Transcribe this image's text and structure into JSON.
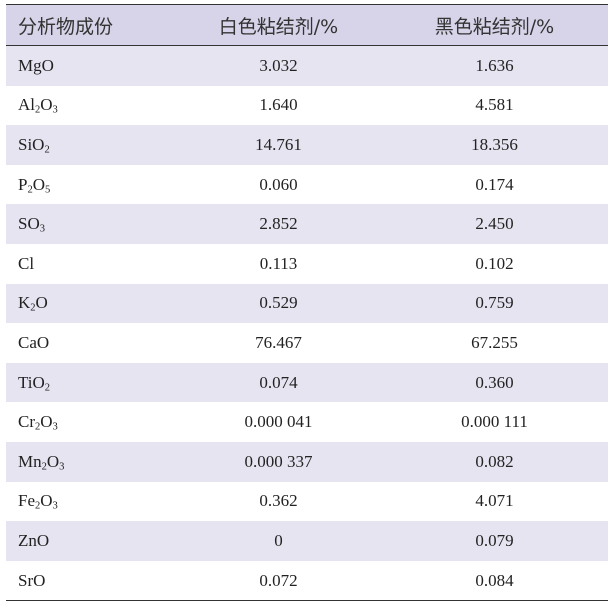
{
  "table": {
    "headers": [
      "分析物成份",
      "白色粘结剂/%",
      "黑色粘结剂/%"
    ],
    "rows": [
      {
        "formula": [
          {
            "t": "MgO"
          }
        ],
        "white": "3.032",
        "black": "1.636"
      },
      {
        "formula": [
          {
            "t": "Al"
          },
          {
            "t": "2",
            "sub": true
          },
          {
            "t": "O"
          },
          {
            "t": "3",
            "sub": true
          }
        ],
        "white": "1.640",
        "black": "4.581"
      },
      {
        "formula": [
          {
            "t": "SiO"
          },
          {
            "t": "2",
            "sub": true
          }
        ],
        "white": "14.761",
        "black": "18.356"
      },
      {
        "formula": [
          {
            "t": "P"
          },
          {
            "t": "2",
            "sub": true
          },
          {
            "t": "O"
          },
          {
            "t": "5",
            "sub": true
          }
        ],
        "white": "0.060",
        "black": "0.174"
      },
      {
        "formula": [
          {
            "t": "SO"
          },
          {
            "t": "3",
            "sub": true
          }
        ],
        "white": "2.852",
        "black": "2.450"
      },
      {
        "formula": [
          {
            "t": "Cl"
          }
        ],
        "white": "0.113",
        "black": "0.102"
      },
      {
        "formula": [
          {
            "t": "K"
          },
          {
            "t": "2",
            "sub": true
          },
          {
            "t": "O"
          }
        ],
        "white": "0.529",
        "black": "0.759"
      },
      {
        "formula": [
          {
            "t": "CaO"
          }
        ],
        "white": "76.467",
        "black": "67.255"
      },
      {
        "formula": [
          {
            "t": "TiO"
          },
          {
            "t": "2",
            "sub": true
          }
        ],
        "white": "0.074",
        "black": "0.360"
      },
      {
        "formula": [
          {
            "t": "Cr"
          },
          {
            "t": "2",
            "sub": true
          },
          {
            "t": "O"
          },
          {
            "t": "3",
            "sub": true
          }
        ],
        "white": "0.000 041",
        "black": "0.000 111"
      },
      {
        "formula": [
          {
            "t": "Mn"
          },
          {
            "t": "2",
            "sub": true
          },
          {
            "t": "O"
          },
          {
            "t": "3",
            "sub": true
          }
        ],
        "white": "0.000 337",
        "black": "0.082"
      },
      {
        "formula": [
          {
            "t": "Fe"
          },
          {
            "t": "2",
            "sub": true
          },
          {
            "t": "O"
          },
          {
            "t": "3",
            "sub": true
          }
        ],
        "white": "0.362",
        "black": "4.071"
      },
      {
        "formula": [
          {
            "t": "ZnO"
          }
        ],
        "white": "0",
        "black": "0.079"
      },
      {
        "formula": [
          {
            "t": "SrO"
          }
        ],
        "white": "0.072",
        "black": "0.084"
      }
    ]
  },
  "colors": {
    "header_bg": "#d7d3e8",
    "alt_row_bg": "#e7e4f1",
    "rule": "#333333"
  }
}
